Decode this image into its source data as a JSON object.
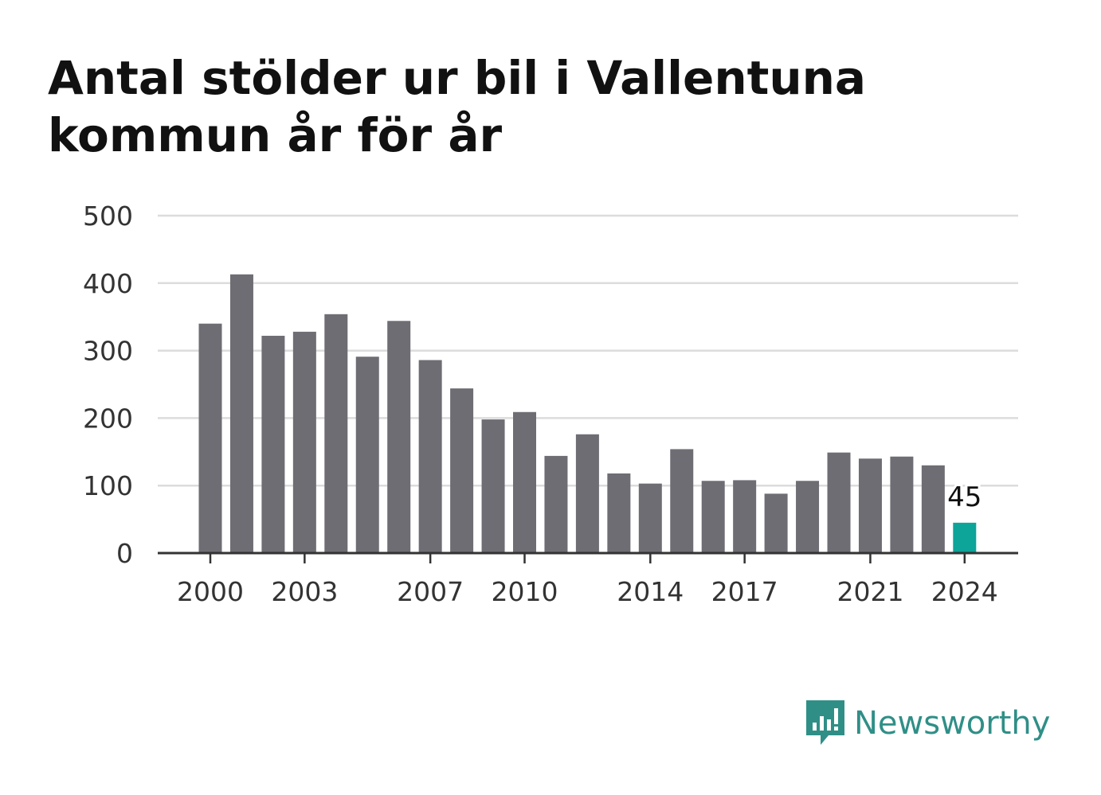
{
  "title_lines": [
    "Antal stölder ur bil i Vallentuna",
    "kommun år för år"
  ],
  "logo": {
    "text": "Newsworthy",
    "icon": "bar-chart-speech-bubble-icon"
  },
  "colors": {
    "bar": "#6e6d73",
    "highlight": "#0da49a",
    "grid": "#dcdcdc",
    "axis": "#333333",
    "logo": "#2f8f87"
  },
  "chart_data": {
    "type": "bar",
    "title": "Antal stölder ur bil i Vallentuna kommun år för år",
    "categories": [
      "2000",
      "2001",
      "2002",
      "2003",
      "2004",
      "2005",
      "2006",
      "2007",
      "2008",
      "2009",
      "2010",
      "2011",
      "2012",
      "2013",
      "2014",
      "2015",
      "2016",
      "2017",
      "2018",
      "2019",
      "2020",
      "2021",
      "2022",
      "2023",
      "2024"
    ],
    "values": [
      340,
      413,
      322,
      328,
      354,
      291,
      344,
      286,
      244,
      198,
      209,
      144,
      176,
      118,
      103,
      154,
      107,
      108,
      88,
      107,
      149,
      140,
      143,
      130,
      45
    ],
    "highlight_index": 24,
    "highlight_label": "45",
    "x_tick_labels": [
      "2000",
      "2003",
      "2007",
      "2010",
      "2014",
      "2017",
      "2021",
      "2024"
    ],
    "y_ticks": [
      0,
      100,
      200,
      300,
      400,
      500
    ],
    "ylim": [
      0,
      500
    ],
    "grid": true,
    "xlabel": "",
    "ylabel": ""
  }
}
